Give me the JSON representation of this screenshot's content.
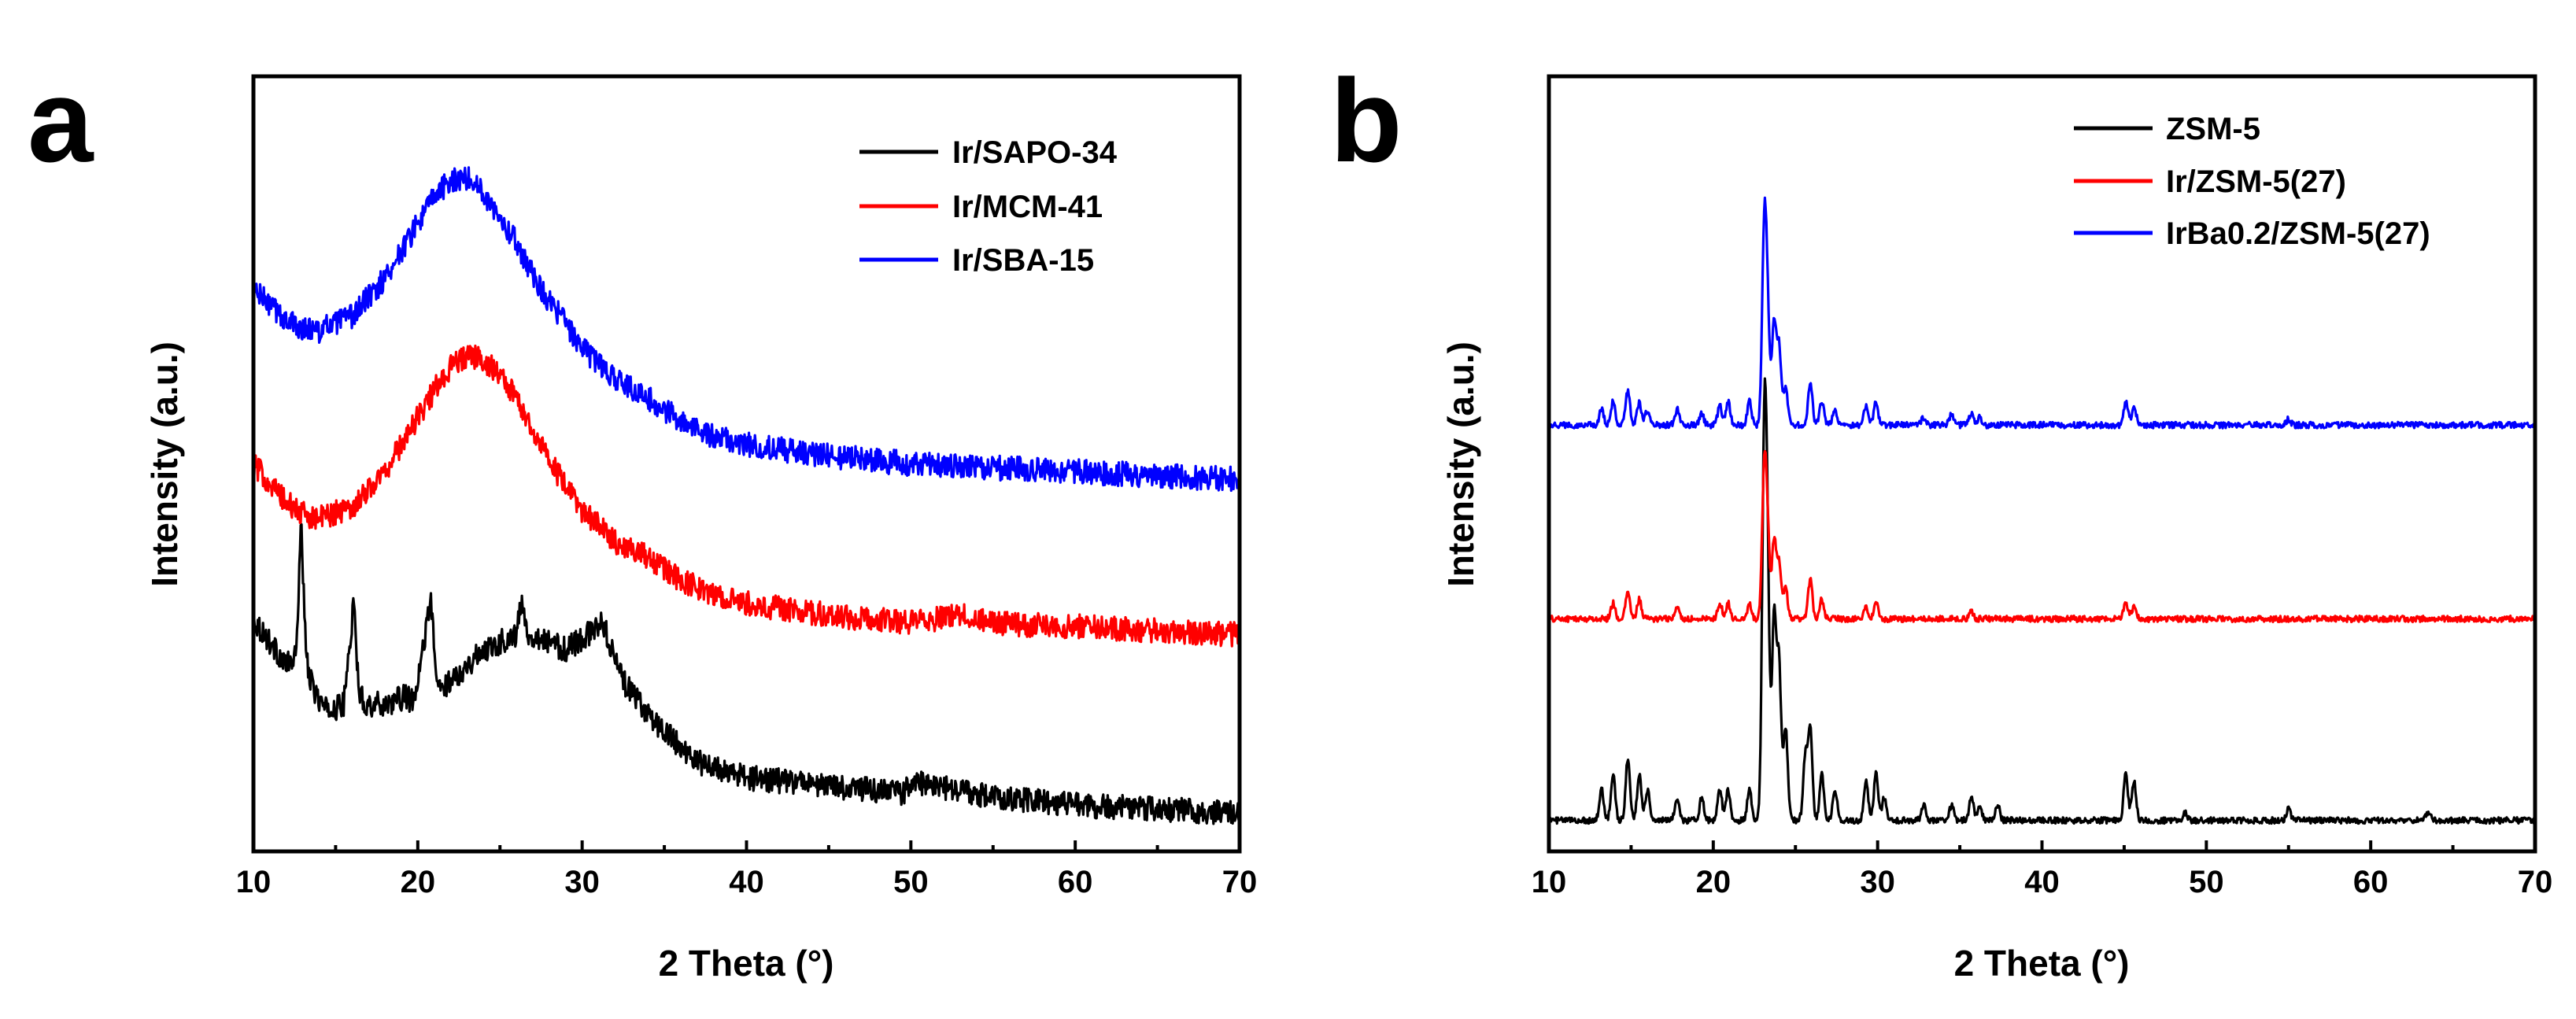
{
  "chart_data": [
    {
      "panel": "a",
      "type": "line",
      "xlabel": "2 Theta (°)",
      "ylabel": "Intensity (a.u.)",
      "xlim": [
        10,
        70
      ],
      "x_ticks": [
        10,
        20,
        30,
        40,
        50,
        60,
        70
      ],
      "y_ticks": [],
      "ylim": [
        0,
        10
      ],
      "legend_position": "top-right",
      "series": [
        {
          "name": "Ir/SAPO-34",
          "color": "#000000",
          "x": [
            10,
            11,
            12,
            12.6,
            12.9,
            13.2,
            13.6,
            14.5,
            15.5,
            16.1,
            16.4,
            16.8,
            18,
            19.3,
            19.8,
            20.8,
            21.1,
            21.5,
            22,
            23,
            24,
            25,
            26,
            26.3,
            26.7,
            27,
            28,
            29,
            30,
            31,
            31.3,
            31.8,
            32.5,
            33.5,
            35,
            37,
            40,
            45,
            49.5,
            50,
            55,
            60,
            65,
            70
          ],
          "y": [
            3.0,
            2.7,
            2.4,
            2.5,
            4.3,
            2.5,
            2.1,
            1.8,
            1.9,
            3.2,
            2.1,
            1.9,
            1.9,
            2.0,
            1.9,
            3.3,
            2.2,
            2.1,
            2.2,
            2.4,
            2.6,
            2.7,
            2.8,
            3.2,
            2.8,
            2.8,
            2.7,
            2.6,
            2.75,
            2.9,
            2.95,
            2.6,
            2.2,
            1.9,
            1.55,
            1.15,
            0.95,
            0.85,
            0.75,
            0.9,
            0.7,
            0.6,
            0.55,
            0.5
          ]
        },
        {
          "name": "Ir/MCM-41",
          "color": "#ff0000",
          "x": [
            10,
            11,
            12,
            13,
            14,
            16,
            18,
            20,
            21,
            22,
            23,
            24,
            25,
            26,
            27,
            28,
            29,
            30,
            32,
            34,
            36,
            38,
            40,
            45,
            50,
            53,
            55,
            60,
            65,
            70
          ],
          "y": [
            5.0,
            4.75,
            4.5,
            4.35,
            4.3,
            4.45,
            4.9,
            5.6,
            5.95,
            6.25,
            6.4,
            6.35,
            6.15,
            5.85,
            5.45,
            5.05,
            4.7,
            4.4,
            4.0,
            3.8,
            3.5,
            3.3,
            3.2,
            3.05,
            2.95,
            3.05,
            2.95,
            2.9,
            2.85,
            2.8
          ]
        },
        {
          "name": "Ir/SBA-15",
          "color": "#0000ff",
          "x": [
            10,
            11,
            12,
            13,
            14,
            16,
            18,
            20,
            21,
            22,
            23,
            24,
            25,
            26,
            27,
            28,
            29,
            30,
            32,
            34,
            36,
            38,
            40,
            45,
            50,
            55,
            60,
            65,
            70
          ],
          "y": [
            7.25,
            7.05,
            6.85,
            6.75,
            6.72,
            6.9,
            7.4,
            8.1,
            8.45,
            8.65,
            8.7,
            8.5,
            8.2,
            7.85,
            7.45,
            7.1,
            6.8,
            6.5,
            6.1,
            5.85,
            5.55,
            5.35,
            5.25,
            5.1,
            5.0,
            4.95,
            4.9,
            4.85,
            4.8
          ]
        }
      ]
    },
    {
      "panel": "b",
      "type": "line",
      "xlabel": "2 Theta (°)",
      "ylabel": "Intensity (a.u.)",
      "xlim": [
        10,
        70
      ],
      "x_ticks": [
        10,
        20,
        30,
        40,
        50,
        60,
        70
      ],
      "y_ticks": [],
      "ylim": [
        0,
        10
      ],
      "legend_position": "top-right",
      "series": [
        {
          "name": "ZSM-5",
          "color": "#000000",
          "baseline": 0.4,
          "peaks": [
            [
              13.2,
              0.4
            ],
            [
              13.9,
              0.6
            ],
            [
              14.8,
              0.8
            ],
            [
              15.5,
              0.6
            ],
            [
              16.0,
              0.4
            ],
            [
              17.8,
              0.3
            ],
            [
              19.3,
              0.3
            ],
            [
              20.4,
              0.4
            ],
            [
              20.9,
              0.4
            ],
            [
              22.2,
              0.4
            ],
            [
              23.1,
              4.6
            ],
            [
              23.3,
              2.8
            ],
            [
              23.7,
              2.6
            ],
            [
              24.0,
              2.0
            ],
            [
              24.4,
              1.2
            ],
            [
              25.6,
              0.8
            ],
            [
              25.9,
              1.2
            ],
            [
              26.6,
              0.6
            ],
            [
              27.4,
              0.4
            ],
            [
              29.3,
              0.5
            ],
            [
              29.9,
              0.6
            ],
            [
              30.4,
              0.3
            ],
            [
              32.8,
              0.2
            ],
            [
              34.5,
              0.2
            ],
            [
              35.7,
              0.3
            ],
            [
              36.2,
              0.2
            ],
            [
              37.3,
              0.2
            ],
            [
              45.1,
              0.6
            ],
            [
              45.6,
              0.5
            ],
            [
              48.7,
              0.1
            ],
            [
              55.0,
              0.15
            ],
            [
              63.5,
              0.1
            ]
          ]
        },
        {
          "name": "Ir/ZSM-5(27)",
          "color": "#ff0000",
          "baseline": 3.0,
          "peaks": [
            [
              13.9,
              0.2
            ],
            [
              14.8,
              0.35
            ],
            [
              15.5,
              0.25
            ],
            [
              17.8,
              0.15
            ],
            [
              20.4,
              0.2
            ],
            [
              20.9,
              0.2
            ],
            [
              22.2,
              0.2
            ],
            [
              23.1,
              1.8
            ],
            [
              23.3,
              1.0
            ],
            [
              23.7,
              1.0
            ],
            [
              24.0,
              0.7
            ],
            [
              24.4,
              0.4
            ],
            [
              25.9,
              0.5
            ],
            [
              26.6,
              0.25
            ],
            [
              29.3,
              0.15
            ],
            [
              29.9,
              0.2
            ],
            [
              35.7,
              0.1
            ],
            [
              45.1,
              0.2
            ],
            [
              45.6,
              0.15
            ]
          ]
        },
        {
          "name": "IrBa0.2/ZSM-5(27)",
          "color": "#0000ff",
          "baseline": 5.5,
          "peaks": [
            [
              13.2,
              0.2
            ],
            [
              13.9,
              0.3
            ],
            [
              14.8,
              0.45
            ],
            [
              15.5,
              0.3
            ],
            [
              16.0,
              0.2
            ],
            [
              17.8,
              0.2
            ],
            [
              19.3,
              0.15
            ],
            [
              20.4,
              0.25
            ],
            [
              20.9,
              0.3
            ],
            [
              22.2,
              0.3
            ],
            [
              23.1,
              2.4
            ],
            [
              23.3,
              1.3
            ],
            [
              23.7,
              1.3
            ],
            [
              24.0,
              1.0
            ],
            [
              24.4,
              0.5
            ],
            [
              25.9,
              0.55
            ],
            [
              26.6,
              0.3
            ],
            [
              27.4,
              0.2
            ],
            [
              29.3,
              0.25
            ],
            [
              29.9,
              0.3
            ],
            [
              32.8,
              0.1
            ],
            [
              34.5,
              0.15
            ],
            [
              35.7,
              0.15
            ],
            [
              36.2,
              0.1
            ],
            [
              45.1,
              0.3
            ],
            [
              45.6,
              0.25
            ],
            [
              55.0,
              0.08
            ]
          ]
        }
      ]
    }
  ]
}
